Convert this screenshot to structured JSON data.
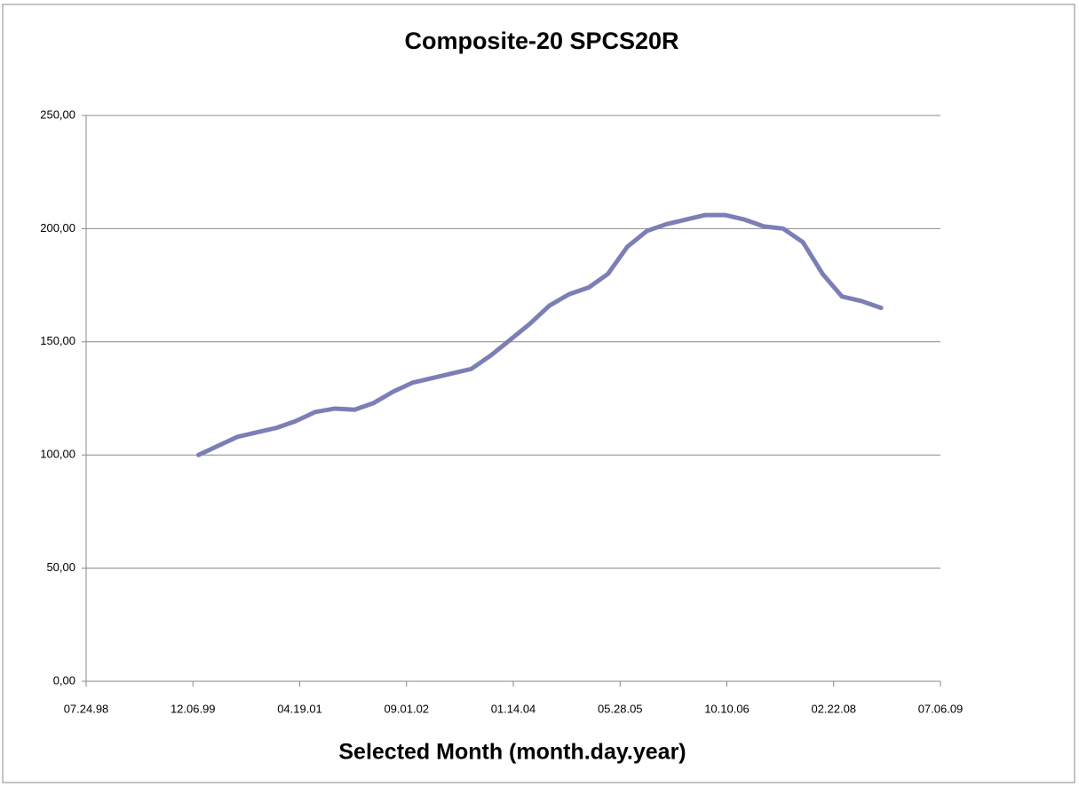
{
  "chart_data": {
    "type": "line",
    "title": "Composite-20 SPCS20R",
    "x_label": "Selected Month (month.day.year)",
    "x": [
      "2000-01-01",
      "2000-04-01",
      "2000-07-01",
      "2000-10-01",
      "2001-01-01",
      "2001-04-01",
      "2001-07-01",
      "2001-10-01",
      "2002-01-01",
      "2002-04-01",
      "2002-07-01",
      "2002-10-01",
      "2003-01-01",
      "2003-04-01",
      "2003-07-01",
      "2003-10-01",
      "2004-01-01",
      "2004-04-01",
      "2004-07-01",
      "2004-10-01",
      "2005-01-01",
      "2005-04-01",
      "2005-07-01",
      "2005-10-01",
      "2006-01-01",
      "2006-04-01",
      "2006-07-01",
      "2006-10-01",
      "2007-01-01",
      "2007-04-01",
      "2007-07-01",
      "2007-10-01",
      "2008-01-01",
      "2008-04-01",
      "2008-07-01",
      "2008-10-01"
    ],
    "series": [
      {
        "name": "SPCS20R",
        "color": "#7b7fb6",
        "values": [
          100,
          104,
          108,
          110,
          112,
          115,
          119,
          120.5,
          120,
          123,
          128,
          132,
          134,
          136,
          138,
          144,
          151,
          158,
          166,
          171,
          174,
          180,
          192,
          199,
          202,
          204,
          206,
          206,
          204,
          201,
          200,
          194,
          180,
          170,
          168,
          165
        ]
      }
    ],
    "xlim": [
      "1998-07-24",
      "2009-07-06"
    ],
    "xticks": [
      {
        "value": "1998-07-24",
        "label": "07.24.98"
      },
      {
        "value": "1999-12-06",
        "label": "12.06.99"
      },
      {
        "value": "2001-04-19",
        "label": "04.19.01"
      },
      {
        "value": "2002-09-01",
        "label": "09.01.02"
      },
      {
        "value": "2004-01-14",
        "label": "01.14.04"
      },
      {
        "value": "2005-05-28",
        "label": "05.28.05"
      },
      {
        "value": "2006-10-10",
        "label": "10.10.06"
      },
      {
        "value": "2008-02-22",
        "label": "02.22.08"
      },
      {
        "value": "2009-07-06",
        "label": "07.06.09"
      }
    ],
    "ylim": [
      0,
      250
    ],
    "yticks": [
      {
        "value": 0,
        "label": "0,00"
      },
      {
        "value": 50,
        "label": "50,00"
      },
      {
        "value": 100,
        "label": "100,00"
      },
      {
        "value": 150,
        "label": "150,00"
      },
      {
        "value": 200,
        "label": "200,00"
      },
      {
        "value": 250,
        "label": "250,00"
      }
    ],
    "grid": true
  }
}
